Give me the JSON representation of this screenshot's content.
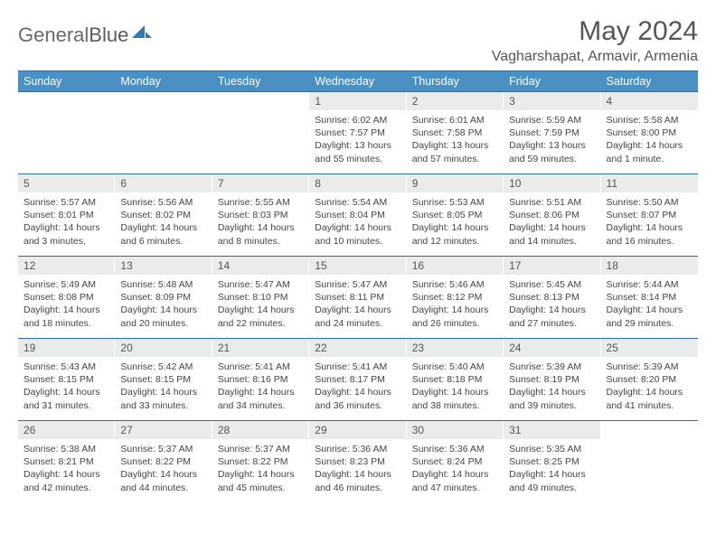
{
  "brand": {
    "part1": "General",
    "part2": "Blue"
  },
  "colors": {
    "header_bg": "#4a90c2",
    "border": "#2a6fa8",
    "daynum_bg": "#e9eceb",
    "logo_shape": "#2f79b6"
  },
  "title": "May 2024",
  "location": "Vagharshapat, Armavir, Armenia",
  "weekdays": [
    "Sunday",
    "Monday",
    "Tuesday",
    "Wednesday",
    "Thursday",
    "Friday",
    "Saturday"
  ],
  "weeks": [
    [
      {
        "n": "",
        "sr": "",
        "ss": "",
        "dl": ""
      },
      {
        "n": "",
        "sr": "",
        "ss": "",
        "dl": ""
      },
      {
        "n": "",
        "sr": "",
        "ss": "",
        "dl": ""
      },
      {
        "n": "1",
        "sr": "Sunrise: 6:02 AM",
        "ss": "Sunset: 7:57 PM",
        "dl": "Daylight: 13 hours and 55 minutes."
      },
      {
        "n": "2",
        "sr": "Sunrise: 6:01 AM",
        "ss": "Sunset: 7:58 PM",
        "dl": "Daylight: 13 hours and 57 minutes."
      },
      {
        "n": "3",
        "sr": "Sunrise: 5:59 AM",
        "ss": "Sunset: 7:59 PM",
        "dl": "Daylight: 13 hours and 59 minutes."
      },
      {
        "n": "4",
        "sr": "Sunrise: 5:58 AM",
        "ss": "Sunset: 8:00 PM",
        "dl": "Daylight: 14 hours and 1 minute."
      }
    ],
    [
      {
        "n": "5",
        "sr": "Sunrise: 5:57 AM",
        "ss": "Sunset: 8:01 PM",
        "dl": "Daylight: 14 hours and 3 minutes."
      },
      {
        "n": "6",
        "sr": "Sunrise: 5:56 AM",
        "ss": "Sunset: 8:02 PM",
        "dl": "Daylight: 14 hours and 6 minutes."
      },
      {
        "n": "7",
        "sr": "Sunrise: 5:55 AM",
        "ss": "Sunset: 8:03 PM",
        "dl": "Daylight: 14 hours and 8 minutes."
      },
      {
        "n": "8",
        "sr": "Sunrise: 5:54 AM",
        "ss": "Sunset: 8:04 PM",
        "dl": "Daylight: 14 hours and 10 minutes."
      },
      {
        "n": "9",
        "sr": "Sunrise: 5:53 AM",
        "ss": "Sunset: 8:05 PM",
        "dl": "Daylight: 14 hours and 12 minutes."
      },
      {
        "n": "10",
        "sr": "Sunrise: 5:51 AM",
        "ss": "Sunset: 8:06 PM",
        "dl": "Daylight: 14 hours and 14 minutes."
      },
      {
        "n": "11",
        "sr": "Sunrise: 5:50 AM",
        "ss": "Sunset: 8:07 PM",
        "dl": "Daylight: 14 hours and 16 minutes."
      }
    ],
    [
      {
        "n": "12",
        "sr": "Sunrise: 5:49 AM",
        "ss": "Sunset: 8:08 PM",
        "dl": "Daylight: 14 hours and 18 minutes."
      },
      {
        "n": "13",
        "sr": "Sunrise: 5:48 AM",
        "ss": "Sunset: 8:09 PM",
        "dl": "Daylight: 14 hours and 20 minutes."
      },
      {
        "n": "14",
        "sr": "Sunrise: 5:47 AM",
        "ss": "Sunset: 8:10 PM",
        "dl": "Daylight: 14 hours and 22 minutes."
      },
      {
        "n": "15",
        "sr": "Sunrise: 5:47 AM",
        "ss": "Sunset: 8:11 PM",
        "dl": "Daylight: 14 hours and 24 minutes."
      },
      {
        "n": "16",
        "sr": "Sunrise: 5:46 AM",
        "ss": "Sunset: 8:12 PM",
        "dl": "Daylight: 14 hours and 26 minutes."
      },
      {
        "n": "17",
        "sr": "Sunrise: 5:45 AM",
        "ss": "Sunset: 8:13 PM",
        "dl": "Daylight: 14 hours and 27 minutes."
      },
      {
        "n": "18",
        "sr": "Sunrise: 5:44 AM",
        "ss": "Sunset: 8:14 PM",
        "dl": "Daylight: 14 hours and 29 minutes."
      }
    ],
    [
      {
        "n": "19",
        "sr": "Sunrise: 5:43 AM",
        "ss": "Sunset: 8:15 PM",
        "dl": "Daylight: 14 hours and 31 minutes."
      },
      {
        "n": "20",
        "sr": "Sunrise: 5:42 AM",
        "ss": "Sunset: 8:15 PM",
        "dl": "Daylight: 14 hours and 33 minutes."
      },
      {
        "n": "21",
        "sr": "Sunrise: 5:41 AM",
        "ss": "Sunset: 8:16 PM",
        "dl": "Daylight: 14 hours and 34 minutes."
      },
      {
        "n": "22",
        "sr": "Sunrise: 5:41 AM",
        "ss": "Sunset: 8:17 PM",
        "dl": "Daylight: 14 hours and 36 minutes."
      },
      {
        "n": "23",
        "sr": "Sunrise: 5:40 AM",
        "ss": "Sunset: 8:18 PM",
        "dl": "Daylight: 14 hours and 38 minutes."
      },
      {
        "n": "24",
        "sr": "Sunrise: 5:39 AM",
        "ss": "Sunset: 8:19 PM",
        "dl": "Daylight: 14 hours and 39 minutes."
      },
      {
        "n": "25",
        "sr": "Sunrise: 5:39 AM",
        "ss": "Sunset: 8:20 PM",
        "dl": "Daylight: 14 hours and 41 minutes."
      }
    ],
    [
      {
        "n": "26",
        "sr": "Sunrise: 5:38 AM",
        "ss": "Sunset: 8:21 PM",
        "dl": "Daylight: 14 hours and 42 minutes."
      },
      {
        "n": "27",
        "sr": "Sunrise: 5:37 AM",
        "ss": "Sunset: 8:22 PM",
        "dl": "Daylight: 14 hours and 44 minutes."
      },
      {
        "n": "28",
        "sr": "Sunrise: 5:37 AM",
        "ss": "Sunset: 8:22 PM",
        "dl": "Daylight: 14 hours and 45 minutes."
      },
      {
        "n": "29",
        "sr": "Sunrise: 5:36 AM",
        "ss": "Sunset: 8:23 PM",
        "dl": "Daylight: 14 hours and 46 minutes."
      },
      {
        "n": "30",
        "sr": "Sunrise: 5:36 AM",
        "ss": "Sunset: 8:24 PM",
        "dl": "Daylight: 14 hours and 47 minutes."
      },
      {
        "n": "31",
        "sr": "Sunrise: 5:35 AM",
        "ss": "Sunset: 8:25 PM",
        "dl": "Daylight: 14 hours and 49 minutes."
      },
      {
        "n": "",
        "sr": "",
        "ss": "",
        "dl": ""
      }
    ]
  ]
}
